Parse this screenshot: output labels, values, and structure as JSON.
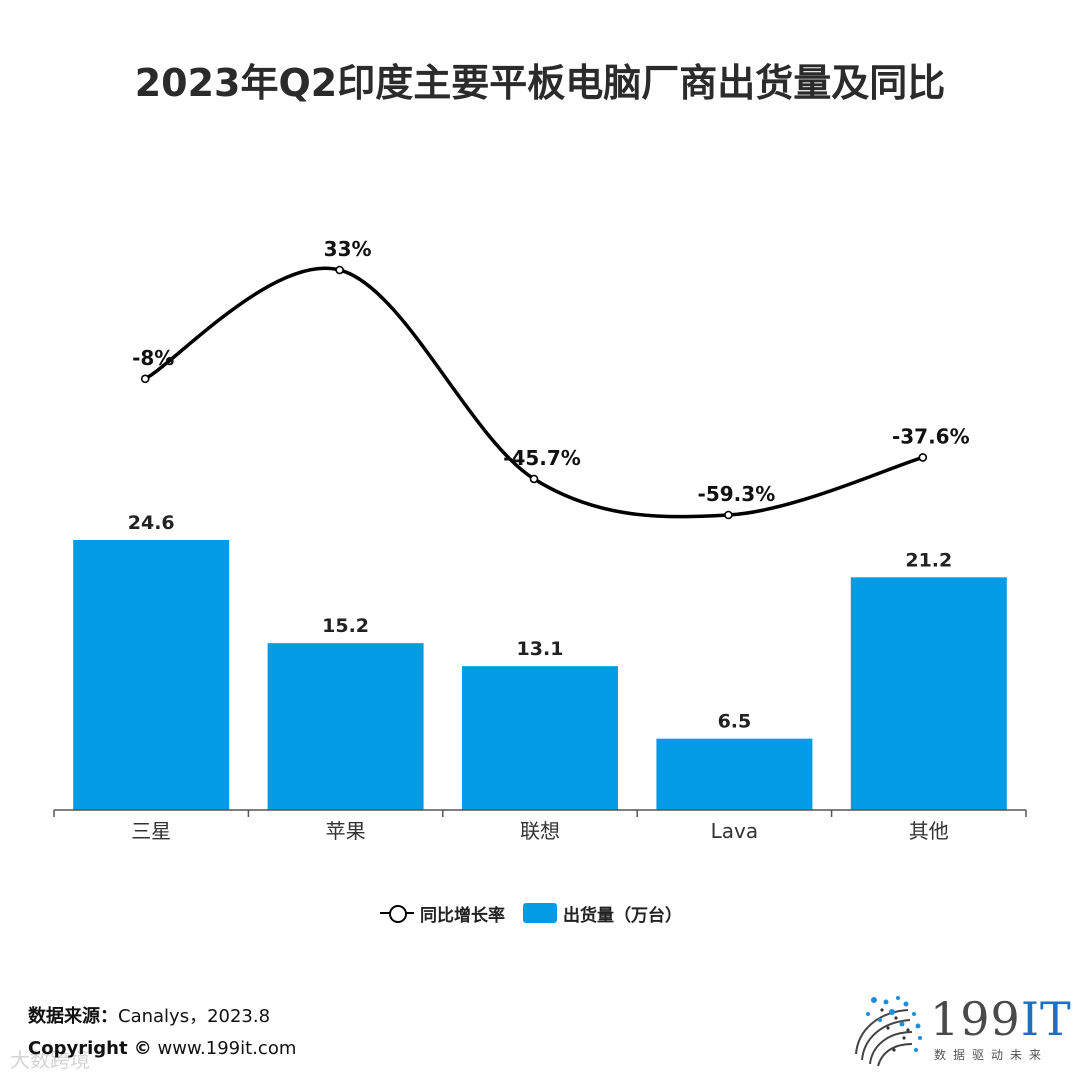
{
  "title": "2023年Q2印度主要平板电脑厂商出货量及同比",
  "chart_data": {
    "type": "bar",
    "categories": [
      "三星",
      "苹果",
      "联想",
      "Lava",
      "其他"
    ],
    "series": [
      {
        "name": "出货量（万台）",
        "type": "bar",
        "values": [
          24.6,
          15.2,
          13.1,
          6.5,
          21.2
        ],
        "labels": [
          "24.6",
          "15.2",
          "13.1",
          "6.5",
          "21.2"
        ],
        "color": "#039be5"
      },
      {
        "name": "同比增长率",
        "type": "line",
        "values": [
          -8,
          33,
          -45.7,
          -59.3,
          -37.6
        ],
        "labels": [
          "-8%",
          "33%",
          "-45.7%",
          "-59.3%",
          "-37.6%"
        ],
        "color": "#000000"
      }
    ],
    "ylim": [
      0,
      24.6
    ],
    "y2lim": [
      -59.3,
      33
    ]
  },
  "legend": {
    "line_label": "同比增长率",
    "bar_label": "出货量（万台）"
  },
  "footer": {
    "source_label": "数据来源：",
    "source_value": "Canalys，2023.8",
    "copyright_label": "Copyright ©",
    "copyright_value": "www.199it.com",
    "watermark": "大数跨境"
  },
  "logo": {
    "main": "199",
    "accent": "IT",
    "tagline": "数据驱动未来"
  }
}
